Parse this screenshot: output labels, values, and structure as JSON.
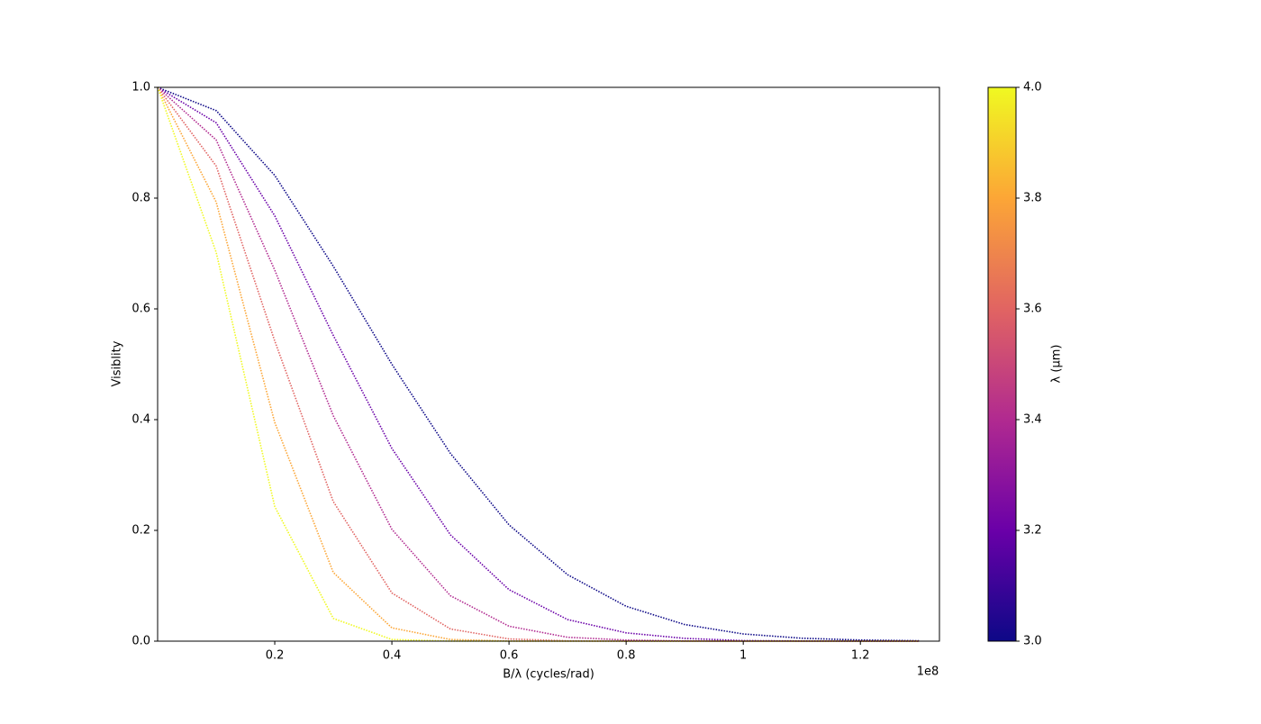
{
  "chart_data": {
    "type": "line",
    "xlabel": "B/λ (cycles/rad)",
    "ylabel": "Visiblity",
    "x_offset_label": "1e8",
    "colorbar_label": "λ (μm)",
    "x": [
      0,
      0.1,
      0.2,
      0.3,
      0.4,
      0.5,
      0.6,
      0.7,
      0.8,
      0.9,
      1.0,
      1.1,
      1.2,
      1.3
    ],
    "series": [
      {
        "wavelength": 3.0,
        "color": "#0d0887",
        "values": [
          1,
          0.958,
          0.841,
          0.677,
          0.5,
          0.339,
          0.21,
          0.12,
          0.063,
          0.03,
          0.013,
          0.0053,
          0.002,
          0.0007
        ]
      },
      {
        "wavelength": 3.2,
        "color": "#6a00a8",
        "values": [
          1,
          0.936,
          0.768,
          0.552,
          0.348,
          0.192,
          0.093,
          0.039,
          0.015,
          0.005,
          0.001,
          0.0003,
          0.0001,
          0
        ]
      },
      {
        "wavelength": 3.4,
        "color": "#b12a90",
        "values": [
          1,
          0.905,
          0.67,
          0.407,
          0.202,
          0.082,
          0.027,
          0.007,
          0.002,
          0.0003,
          0,
          0,
          0,
          0
        ]
      },
      {
        "wavelength": 3.6,
        "color": "#e16462",
        "values": [
          1,
          0.858,
          0.542,
          0.252,
          0.087,
          0.022,
          0.004,
          0.0006,
          0,
          0,
          0,
          0,
          0,
          0
        ]
      },
      {
        "wavelength": 3.8,
        "color": "#fca636",
        "values": [
          1,
          0.793,
          0.395,
          0.124,
          0.024,
          0.003,
          0.0002,
          0,
          0,
          0,
          0,
          0,
          0,
          0
        ]
      },
      {
        "wavelength": 4.0,
        "color": "#f0f921",
        "values": [
          1,
          0.702,
          0.243,
          0.041,
          0.003,
          0.0001,
          0,
          0,
          0,
          0,
          0,
          0,
          0,
          0
        ]
      }
    ],
    "xlim": [
      0,
      1.335
    ],
    "xticks": [
      0.2,
      0.4,
      0.6,
      0.8,
      1.0,
      1.2
    ],
    "ylim": [
      0,
      1
    ],
    "yticks": [
      {
        "value": 0,
        "label": "0.0"
      },
      0.2,
      0.4,
      0.6,
      0.8,
      {
        "value": 1,
        "label": "1.0"
      }
    ],
    "clim": [
      3,
      4
    ],
    "cticks": [
      {
        "value": 3,
        "label": "3.0"
      },
      3.2,
      3.4,
      3.6,
      3.8,
      {
        "value": 4,
        "label": "4.0"
      }
    ]
  }
}
